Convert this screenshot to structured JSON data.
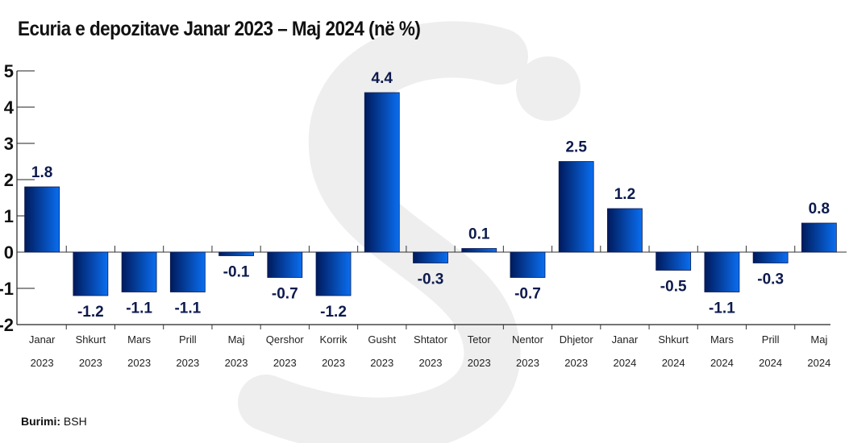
{
  "title": "Ecuria e depozitave Janar 2023 – Maj 2024 (në %)",
  "source": {
    "label": "Burimi:",
    "value": "BSH"
  },
  "chart_data": {
    "type": "bar",
    "title": "Ecuria e depozitave Janar 2023 – Maj 2024 (në %)",
    "categories": [
      [
        "Janar",
        "2023"
      ],
      [
        "Shkurt",
        "2023"
      ],
      [
        "Mars",
        "2023"
      ],
      [
        "Prill",
        "2023"
      ],
      [
        "Maj",
        "2023"
      ],
      [
        "Qershor",
        "2023"
      ],
      [
        "Korrik",
        "2023"
      ],
      [
        "Gusht",
        "2023"
      ],
      [
        "Shtator",
        "2023"
      ],
      [
        "Tetor",
        "2023"
      ],
      [
        "Nentor",
        "2023"
      ],
      [
        "Dhjetor",
        "2023"
      ],
      [
        "Janar",
        "2024"
      ],
      [
        "Shkurt",
        "2024"
      ],
      [
        "Mars",
        "2024"
      ],
      [
        "Prill",
        "2024"
      ],
      [
        "Maj",
        "2024"
      ]
    ],
    "values": [
      1.8,
      -1.2,
      -1.1,
      -1.1,
      -0.1,
      -0.7,
      -1.2,
      4.4,
      -0.3,
      0.1,
      -0.7,
      2.5,
      1.2,
      -0.5,
      -1.1,
      -0.3,
      0.8
    ],
    "ylim": [
      -2,
      5
    ],
    "yticks": [
      5,
      4,
      3,
      2,
      1,
      0,
      -1,
      -2
    ],
    "grid": false,
    "colors": {
      "bar_dark": "#001a5c",
      "bar_light": "#0a6ef0",
      "label": "#0d1a4d"
    }
  }
}
